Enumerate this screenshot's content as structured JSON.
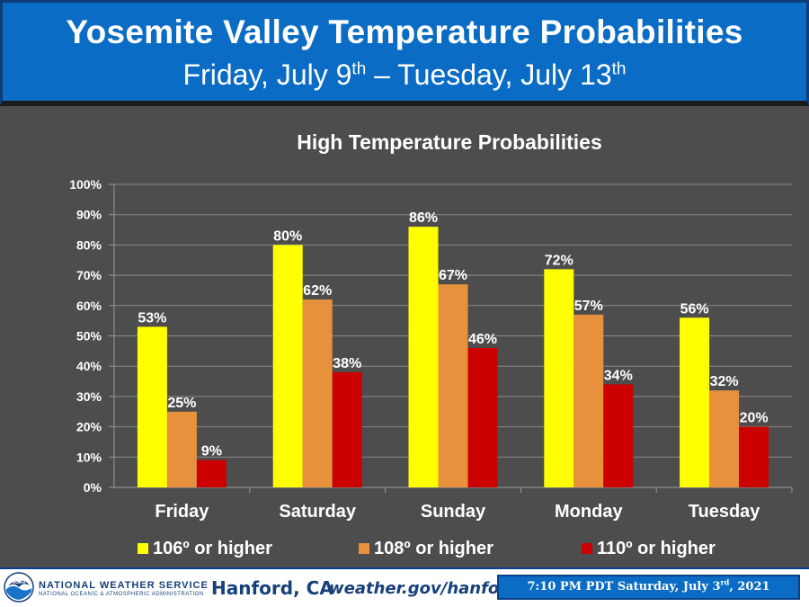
{
  "header": {
    "title": "Yosemite Valley Temperature Probabilities",
    "subtitle_a": "Friday, July 9",
    "subtitle_a_sup": "th",
    "subtitle_b": " – Tuesday, July 13",
    "subtitle_b_sup": "th",
    "background": "#0a6cc4"
  },
  "chart_data": {
    "type": "bar",
    "title": "High Temperature Probabilities",
    "categories": [
      "Friday",
      "Saturday",
      "Sunday",
      "Monday",
      "Tuesday"
    ],
    "series": [
      {
        "name": "106º or higher",
        "color": "#ffff00",
        "values": [
          53,
          80,
          86,
          72,
          56
        ]
      },
      {
        "name": "108º or higher",
        "color": "#e8913c",
        "values": [
          25,
          62,
          67,
          57,
          32
        ]
      },
      {
        "name": "110º or higher",
        "color": "#cc0000",
        "values": [
          9,
          38,
          46,
          34,
          20
        ]
      }
    ],
    "ylim": [
      0,
      100
    ],
    "yticks": [
      0,
      10,
      20,
      30,
      40,
      50,
      60,
      70,
      80,
      90,
      100
    ],
    "value_suffix": "%",
    "grid": true,
    "legend": "bottom",
    "background": "#4d4d4d"
  },
  "footer": {
    "agency": "NATIONAL WEATHER SERVICE",
    "agency_sub": "NATIONAL OCEANIC & ATMOSPHERIC ADMINISTRATION",
    "logo_text": "NOAA",
    "office": "Hanford, CA",
    "website": "weather.gov/hanford",
    "timestamp_a": "7:10 PM PDT Saturday, July 3",
    "timestamp_sup": "rd",
    "timestamp_b": ", 2021"
  }
}
